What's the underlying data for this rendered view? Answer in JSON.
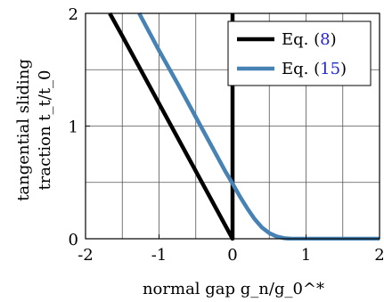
{
  "chart_data": {
    "type": "line",
    "xlabel": "normal gap g_n/g_0^*",
    "ylabel_line1": "tangential sliding",
    "ylabel_line2": "traction t_t/t_0",
    "xlim": [
      -2,
      2
    ],
    "ylim": [
      0,
      2
    ],
    "x_ticks": [
      -2,
      -1,
      0,
      1,
      2
    ],
    "y_ticks": [
      0,
      1,
      2
    ],
    "x_tick_labels": [
      "-2",
      "-1",
      "0",
      "1",
      "2"
    ],
    "y_tick_labels": [
      "0",
      "1",
      "2"
    ],
    "grid": true,
    "legend_position": "top-right",
    "series": [
      {
        "name": "Eq. (8)",
        "label_prefix": "Eq. (",
        "label_ref": "8",
        "label_suffix": ")",
        "color": "#000000",
        "x": [
          -1.67,
          -1.5,
          -1.0,
          -0.5,
          0.0,
          0.0
        ],
        "y": [
          2.0,
          1.8,
          1.2,
          0.6,
          0.0,
          2.0
        ]
      },
      {
        "name": "Eq. (15)",
        "label_prefix": "Eq. (",
        "label_ref": "15",
        "label_suffix": ")",
        "color": "#4682b4",
        "x": [
          -1.27,
          -1.0,
          -0.75,
          -0.5,
          -0.25,
          -0.1,
          0.0,
          0.1,
          0.2,
          0.3,
          0.4,
          0.5,
          0.6,
          0.7,
          0.8,
          1.0,
          1.5,
          2.0
        ],
        "y": [
          2.0,
          1.67,
          1.38,
          1.08,
          0.78,
          0.6,
          0.49,
          0.375,
          0.27,
          0.175,
          0.1,
          0.05,
          0.02,
          0.005,
          0.0,
          0.0,
          0.0,
          0.0
        ]
      }
    ]
  }
}
